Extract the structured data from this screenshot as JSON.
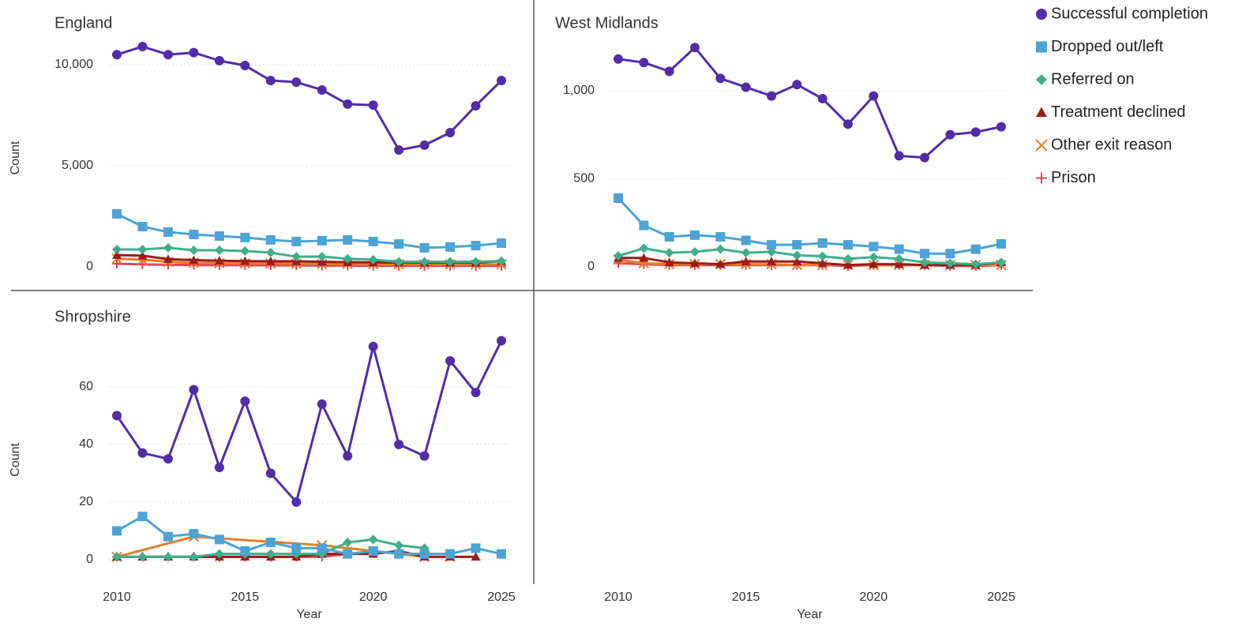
{
  "chart_data": [
    {
      "type": "line",
      "title": "England",
      "ylabel": "Count",
      "x": [
        2010,
        2011,
        2012,
        2013,
        2014,
        2015,
        2016,
        2017,
        2018,
        2019,
        2020,
        2021,
        2022,
        2023,
        2024,
        2025
      ],
      "xlim": [
        2010,
        2025
      ],
      "ylim": [
        -470,
        11250
      ],
      "yticks": [
        0,
        {
          "value": 5000,
          "label": "5,000"
        },
        {
          "value": 10000,
          "label": "10,000"
        }
      ],
      "grid": true,
      "legend": "right",
      "series": [
        {
          "name": "Successful completion",
          "color": "#512da8",
          "marker": "circle",
          "values": [
            10500,
            10900,
            10500,
            10600,
            10200,
            9960,
            9220,
            9140,
            8750,
            8050,
            8000,
            5780,
            6020,
            6640,
            7970,
            9220
          ]
        },
        {
          "name": "Dropped out/left",
          "color": "#4ba3d6",
          "marker": "square",
          "values": [
            2620,
            1990,
            1720,
            1600,
            1520,
            1450,
            1330,
            1250,
            1290,
            1330,
            1250,
            1130,
            940,
            980,
            1050,
            1170
          ]
        },
        {
          "name": "Referred on",
          "color": "#3fae8c",
          "marker": "diamond",
          "values": [
            860,
            860,
            940,
            820,
            820,
            780,
            700,
            500,
            500,
            400,
            350,
            250,
            250,
            250,
            250,
            280
          ]
        },
        {
          "name": "Treatment declined",
          "color": "#9b1c1c",
          "marker": "triangle",
          "values": [
            580,
            550,
            380,
            330,
            300,
            280,
            270,
            270,
            250,
            230,
            220,
            210,
            210,
            210,
            200,
            280
          ]
        },
        {
          "name": "Other exit reason",
          "color": "#e67e22",
          "marker": "x",
          "values": [
            400,
            350,
            250,
            200,
            180,
            170,
            160,
            150,
            140,
            140,
            130,
            120,
            120,
            120,
            110,
            120
          ]
        },
        {
          "name": "Prison",
          "color": "#e0455a",
          "marker": "plus",
          "values": [
            150,
            120,
            100,
            90,
            80,
            80,
            70,
            70,
            60,
            60,
            50,
            50,
            50,
            50,
            50,
            50
          ]
        }
      ]
    },
    {
      "type": "line",
      "title": "West Midlands",
      "xlabel": "Year",
      "x": [
        2010,
        2011,
        2012,
        2013,
        2014,
        2015,
        2016,
        2017,
        2018,
        2019,
        2020,
        2021,
        2022,
        2023,
        2024,
        2025
      ],
      "xlim": [
        2010,
        2025
      ],
      "xticks": [
        2010,
        2015,
        2020,
        2025
      ],
      "ylim": [
        -54,
        1291
      ],
      "yticks": [
        0,
        500,
        {
          "value": 1000,
          "label": "1,000"
        }
      ],
      "grid": true,
      "series": [
        {
          "name": "Successful completion",
          "color": "#512da8",
          "marker": "circle",
          "values": [
            1180,
            1160,
            1110,
            1245,
            1070,
            1020,
            970,
            1035,
            955,
            810,
            970,
            630,
            620,
            750,
            765,
            795
          ]
        },
        {
          "name": "Dropped out/left",
          "color": "#4ba3d6",
          "marker": "square",
          "values": [
            390,
            235,
            170,
            180,
            170,
            150,
            125,
            125,
            135,
            125,
            115,
            100,
            75,
            75,
            100,
            130
          ]
        },
        {
          "name": "Referred on",
          "color": "#3fae8c",
          "marker": "diamond",
          "values": [
            62,
            105,
            80,
            85,
            100,
            80,
            85,
            65,
            60,
            45,
            55,
            45,
            25,
            20,
            15,
            25
          ]
        },
        {
          "name": "Treatment declined",
          "color": "#9b1c1c",
          "marker": "triangle",
          "values": [
            50,
            50,
            25,
            20,
            15,
            30,
            30,
            30,
            20,
            10,
            15,
            15,
            10,
            10,
            10,
            25
          ]
        },
        {
          "name": "Other exit reason",
          "color": "#e67e22",
          "marker": "x",
          "values": [
            40,
            20,
            15,
            15,
            15,
            15,
            15,
            10,
            10,
            10,
            10,
            10,
            10,
            10,
            10,
            10
          ]
        },
        {
          "name": "Prison",
          "color": "#e0455a",
          "marker": "plus",
          "values": [
            20,
            15,
            10,
            10,
            10,
            10,
            10,
            10,
            10,
            5,
            10,
            10,
            10,
            5,
            5,
            10
          ]
        }
      ]
    },
    {
      "type": "line",
      "title": "Shropshire",
      "ylabel": "Count",
      "xlabel": "Year",
      "x": [
        2010,
        2011,
        2012,
        2013,
        2014,
        2015,
        2016,
        2017,
        2018,
        2019,
        2020,
        2021,
        2022,
        2023,
        2024,
        2025
      ],
      "xlim": [
        2010,
        2025
      ],
      "xticks": [
        2010,
        2015,
        2020,
        2025
      ],
      "ylim": [
        -8.5,
        77.8
      ],
      "yticks": [
        0,
        20,
        40,
        60
      ],
      "grid": true,
      "series": [
        {
          "name": "Successful completion",
          "color": "#512da8",
          "marker": "circle",
          "values": [
            50,
            37,
            35,
            59,
            32,
            55,
            30,
            20,
            54,
            36,
            74,
            40,
            36,
            69,
            58,
            76
          ]
        },
        {
          "name": "Dropped out/left",
          "color": "#4ba3d6",
          "marker": "square",
          "values": [
            10,
            15,
            8,
            9,
            7,
            3,
            6,
            4,
            4,
            2,
            3,
            2,
            2,
            2,
            4,
            2
          ]
        },
        {
          "name": "Referred on",
          "color": "#3fae8c",
          "marker": "diamond",
          "values": [
            1,
            1,
            1,
            1,
            2,
            2,
            2,
            2,
            2,
            6,
            7,
            5,
            4,
            null,
            null,
            null
          ]
        },
        {
          "name": "Treatment declined",
          "color": "#9b1c1c",
          "marker": "triangle",
          "values": [
            1,
            1,
            1,
            1,
            1,
            1,
            1,
            1,
            2,
            2,
            2,
            3,
            1,
            1,
            1,
            null
          ]
        },
        {
          "name": "Other exit reason",
          "color": "#e67e22",
          "marker": "x",
          "x": [
            2010,
            2013,
            2018,
            2020,
            2022,
            2023
          ],
          "values": [
            1,
            8,
            5,
            3,
            1,
            1
          ]
        },
        {
          "name": "Prison",
          "color": "#e0455a",
          "marker": "plus",
          "values": [
            1,
            1,
            1,
            1,
            1,
            1,
            1,
            1,
            1,
            2,
            null,
            null,
            null,
            null,
            null,
            null
          ]
        }
      ]
    }
  ]
}
